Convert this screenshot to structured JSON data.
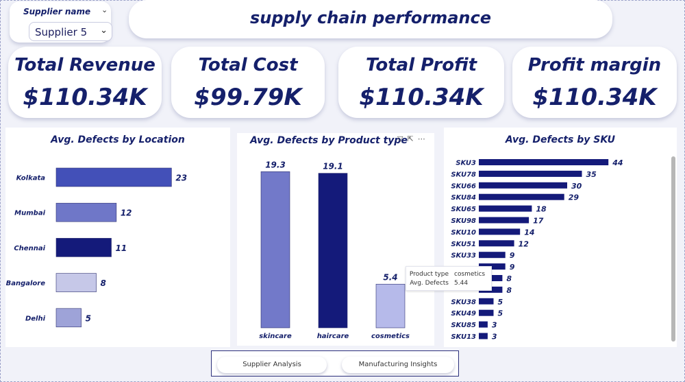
{
  "slicer": {
    "label": "Supplier name",
    "value": "Supplier 5"
  },
  "header": {
    "title": "supply chain performance"
  },
  "kpis": [
    {
      "label": "Total Revenue",
      "value": "$110.34K"
    },
    {
      "label": "Total Cost",
      "value": "$99.79K"
    },
    {
      "label": "Total Profit",
      "value": "$110.34K"
    },
    {
      "label": "Profit margin",
      "value": "$110.34K"
    }
  ],
  "chart_data": [
    {
      "type": "bar",
      "orientation": "horizontal",
      "title": "Avg. Defects by Location",
      "categories": [
        "Kolkata",
        "Mumbai",
        "Chennai",
        "Bangalore",
        "Delhi"
      ],
      "values": [
        23,
        12,
        11,
        8,
        5
      ],
      "colors": [
        "#4350b8",
        "#6f77c8",
        "#141a7a",
        "#c6c8e8",
        "#9ea3d8"
      ]
    },
    {
      "type": "bar",
      "orientation": "vertical",
      "title": "Avg. Defects by Product type",
      "categories": [
        "skincare",
        "haircare",
        "cosmetics"
      ],
      "values": [
        19.3,
        19.1,
        5.4
      ],
      "colors": [
        "#7279c9",
        "#141a7a",
        "#b6baea"
      ]
    },
    {
      "type": "bar",
      "orientation": "horizontal",
      "title": "Avg. Defects by SKU",
      "categories": [
        "SKU3",
        "SKU78",
        "SKU66",
        "SKU84",
        "SKU65",
        "SKU98",
        "SKU10",
        "SKU51",
        "SKU33",
        "",
        "",
        "",
        "SKU38",
        "SKU49",
        "SKU85",
        "SKU13"
      ],
      "values": [
        44,
        35,
        30,
        29,
        18,
        17,
        14,
        12,
        9,
        9,
        8,
        8,
        5,
        5,
        3,
        3
      ],
      "color": "#141a7a"
    }
  ],
  "tooltip": {
    "rows": [
      {
        "key": "Product type",
        "value": "cosmetics"
      },
      {
        "key": "Avg. Defects",
        "value": "5.44"
      }
    ]
  },
  "nav": {
    "buttons": [
      "Supplier Analysis",
      "Manufacturing Insights"
    ]
  },
  "icons": {
    "filter": "filter-icon",
    "focus": "focus-mode-icon",
    "more": "more-options-icon"
  }
}
